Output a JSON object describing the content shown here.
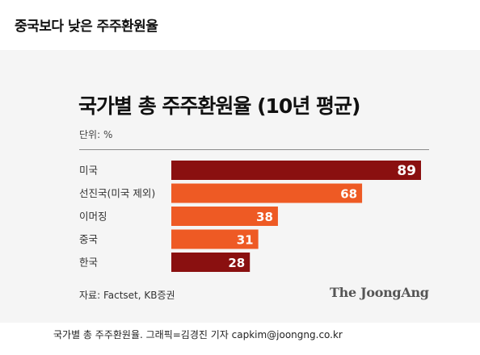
{
  "page_heading": "중국보다 낮은 주주환원율",
  "chart_data": {
    "type": "bar",
    "orientation": "horizontal",
    "title": "국가별 총 주주환원율 (10년 평균)",
    "unit_label": "단위: %",
    "categories": [
      "미국",
      "선진국(미국 제외)",
      "이머징",
      "중국",
      "한국"
    ],
    "values": [
      89,
      68,
      38,
      31,
      28
    ],
    "bar_colors": [
      "#8a1010",
      "#ee5a24",
      "#ee5a24",
      "#ee5a24",
      "#8a1010"
    ],
    "data_labels": true,
    "xlim": [
      0,
      100
    ],
    "grid": false
  },
  "source": "자료: Factset, KB증권",
  "brand": "The JoongAng",
  "caption": "국가별 총 주주환원율. 그래픽=김경진 기자 capkim@joongng.co.kr"
}
